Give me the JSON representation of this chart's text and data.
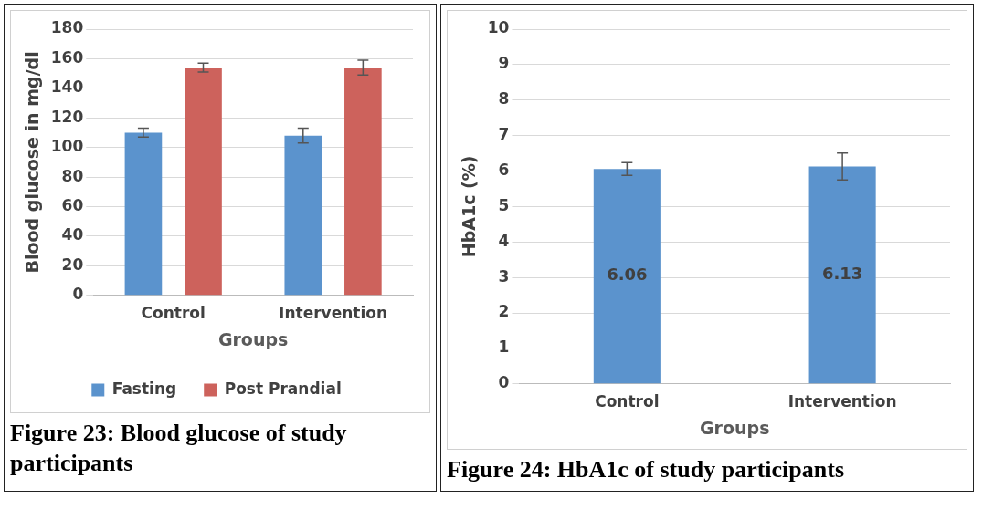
{
  "chart_data": [
    {
      "type": "bar",
      "categories": [
        "Control",
        "Intervention"
      ],
      "series": [
        {
          "name": "Fasting",
          "color": "#5b93cd",
          "values": [
            110,
            108
          ],
          "errors": [
            3,
            5
          ]
        },
        {
          "name": "Post Prandial",
          "color": "#cd625c",
          "values": [
            154,
            154
          ],
          "errors": [
            3,
            5
          ]
        }
      ],
      "xlabel": "Groups",
      "ylabel": "Blood glucose in mg/dl",
      "ylim": [
        0,
        180
      ],
      "yticks": [
        0,
        20,
        40,
        60,
        80,
        100,
        120,
        140,
        160,
        180
      ],
      "grid": "y",
      "legend": "bottom",
      "annotations": [
        "Figure 23: Blood glucose of study participants"
      ]
    },
    {
      "type": "bar",
      "categories": [
        "Control",
        "Intervention"
      ],
      "values": [
        6.06,
        6.13
      ],
      "errors": [
        0.18,
        0.38
      ],
      "color": "#5b93cd",
      "data_labels": true,
      "xlabel": "Groups",
      "ylabel": "HbA1c (%)",
      "ylim": [
        0,
        10
      ],
      "yticks": [
        0,
        1,
        2,
        3,
        4,
        5,
        6,
        7,
        8,
        9,
        10
      ],
      "grid": "y",
      "annotations": [
        "Figure 24: HbA1c of study participants"
      ]
    }
  ]
}
